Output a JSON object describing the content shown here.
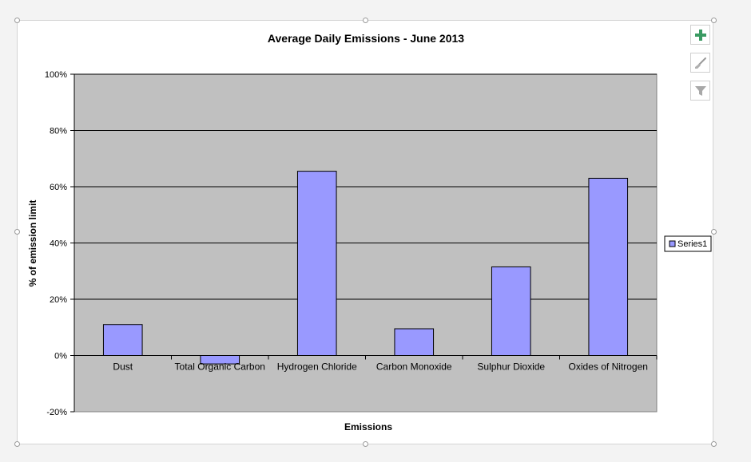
{
  "chart_data": {
    "type": "bar",
    "title": "Average Daily Emissions - June 2013",
    "xlabel": "Emissions",
    "ylabel": "% of emission limit",
    "categories": [
      "Dust",
      "Total Organic Carbon",
      "Hydrogen Chloride",
      "Carbon Monoxide",
      "Sulphur Dioxide",
      "Oxides of Nitrogen"
    ],
    "series": [
      {
        "name": "Series1",
        "values": [
          0.11,
          -0.03,
          0.655,
          0.095,
          0.315,
          0.63
        ]
      }
    ],
    "ylim": [
      -0.2,
      1.0
    ],
    "yticks": [
      -0.2,
      0.0,
      0.2,
      0.4,
      0.6,
      0.8,
      1.0
    ],
    "ytick_labels": [
      "-20%",
      "0%",
      "20%",
      "40%",
      "60%",
      "80%",
      "100%"
    ],
    "grid": true,
    "legend_position": "right",
    "colors": {
      "bar_fill": "#9999ff",
      "bar_stroke": "#000000",
      "plot_background": "#c0c0c0",
      "gridline": "#000000"
    }
  },
  "side_buttons": [
    {
      "icon": "plus-icon",
      "label": "Chart Elements"
    },
    {
      "icon": "brush-icon",
      "label": "Chart Styles"
    },
    {
      "icon": "filter-icon",
      "label": "Chart Filters"
    }
  ]
}
